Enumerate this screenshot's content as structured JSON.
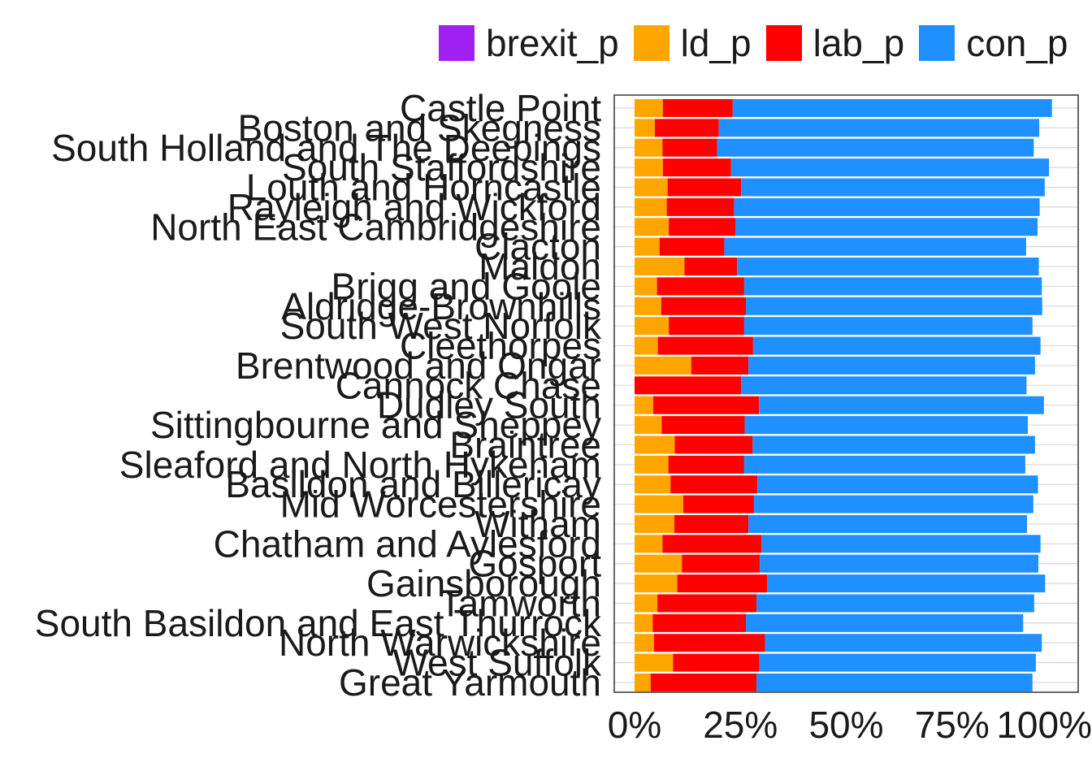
{
  "chart_data": {
    "type": "bar",
    "orientation": "horizontal",
    "stacked": true,
    "title": "",
    "xlabel": "",
    "ylabel": "",
    "xlim": [
      0,
      1
    ],
    "x_ticks": [
      "0%",
      "25%",
      "50%",
      "75%",
      "100%"
    ],
    "legend_position": "top",
    "grid": true,
    "categories": [
      "Castle Point",
      "Boston and Skegness",
      "South Holland and The Deepings",
      "South Staffordshire",
      "Louth and Horncastle",
      "Rayleigh and Wickford",
      "North East Cambridgeshire",
      "Clacton",
      "Maldon",
      "Brigg and Goole",
      "Aldridge-Brownhills",
      "South West Norfolk",
      "Cleethorpes",
      "Brentwood and Ongar",
      "Cannock Chase",
      "Dudley South",
      "Sittingbourne and Sheppey",
      "Braintree",
      "Sleaford and North Hykeham",
      "Basildon and Billericay",
      "Mid Worcestershire",
      "Witham",
      "Chatham and Aylesford",
      "Gosport",
      "Gainsborough",
      "Tamworth",
      "South Basildon and East Thurrock",
      "North Warwickshire",
      "West Suffolk",
      "Great Yarmouth"
    ],
    "series": [
      {
        "name": "brexit_p",
        "color": "#A020F0",
        "values": [
          0,
          0,
          0,
          0,
          0,
          0,
          0,
          0,
          0,
          0,
          0,
          0,
          0,
          0,
          0,
          0,
          0,
          0,
          0,
          0,
          0,
          0,
          0,
          0,
          0,
          0,
          0,
          0,
          0,
          0
        ]
      },
      {
        "name": "ld_p",
        "color": "#FFA500",
        "values": [
          0.067,
          0.048,
          0.066,
          0.067,
          0.078,
          0.076,
          0.081,
          0.059,
          0.118,
          0.053,
          0.063,
          0.081,
          0.055,
          0.134,
          0.0,
          0.044,
          0.064,
          0.095,
          0.08,
          0.085,
          0.115,
          0.094,
          0.066,
          0.112,
          0.101,
          0.054,
          0.043,
          0.046,
          0.091,
          0.038
        ]
      },
      {
        "name": "lab_p",
        "color": "#FF0000",
        "values": [
          0.165,
          0.151,
          0.129,
          0.161,
          0.174,
          0.159,
          0.157,
          0.153,
          0.124,
          0.206,
          0.2,
          0.178,
          0.225,
          0.135,
          0.252,
          0.25,
          0.196,
          0.184,
          0.179,
          0.205,
          0.167,
          0.175,
          0.234,
          0.184,
          0.212,
          0.234,
          0.22,
          0.262,
          0.204,
          0.25
        ]
      },
      {
        "name": "con_p",
        "color": "#1E90FF",
        "values": [
          0.754,
          0.757,
          0.748,
          0.751,
          0.717,
          0.722,
          0.714,
          0.713,
          0.713,
          0.703,
          0.7,
          0.681,
          0.679,
          0.677,
          0.674,
          0.673,
          0.669,
          0.667,
          0.664,
          0.663,
          0.66,
          0.658,
          0.659,
          0.658,
          0.657,
          0.656,
          0.655,
          0.654,
          0.653,
          0.652
        ]
      }
    ]
  }
}
